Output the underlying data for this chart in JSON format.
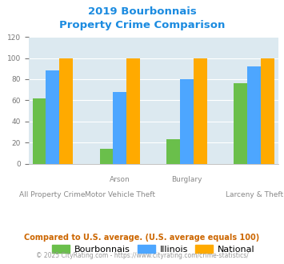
{
  "title_line1": "2019 Bourbonnais",
  "title_line2": "Property Crime Comparison",
  "title_color": "#1b8be0",
  "groups": [
    {
      "label": "All Property Crime",
      "bourbonnais": 62,
      "illinois": 88,
      "national": 100
    },
    {
      "label": "Arson / Motor Vehicle Theft",
      "bourbonnais": 14,
      "illinois": 68,
      "national": 100
    },
    {
      "label": "Burglary",
      "bourbonnais": 23,
      "illinois": 80,
      "national": 100
    },
    {
      "label": "Larceny & Theft",
      "bourbonnais": 76,
      "illinois": 92,
      "national": 100
    }
  ],
  "colors": {
    "bourbonnais": "#6abf4b",
    "illinois": "#4da6ff",
    "national": "#ffaa00"
  },
  "ylim": [
    0,
    120
  ],
  "yticks": [
    0,
    20,
    40,
    60,
    80,
    100,
    120
  ],
  "plot_bg": "#dce9f0",
  "legend_labels": [
    "Bourbonnais",
    "Illinois",
    "National"
  ],
  "top_xlabels": {
    "1": "Arson",
    "2": "Burglary"
  },
  "bot_xlabels": {
    "0": "All Property Crime",
    "1": "Motor Vehicle Theft",
    "3": "Larceny & Theft"
  },
  "footnote1": "Compared to U.S. average. (U.S. average equals 100)",
  "footnote2": "© 2025 CityRating.com - https://www.cityrating.com/crime-statistics/",
  "footnote1_color": "#cc6600",
  "footnote2_color": "#999999"
}
